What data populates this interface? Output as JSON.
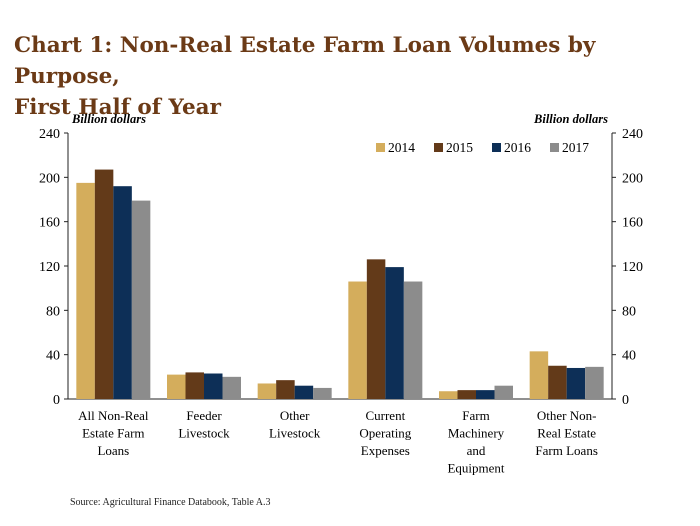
{
  "title": {
    "line1": "Chart 1: Non-Real Estate Farm Loan Volumes by Purpose,",
    "line2": "First Half of Year"
  },
  "source": "Source: Agricultural Finance Databook, Table A.3",
  "chart_data": {
    "type": "bar",
    "ylabel_left": "Billion dollars",
    "ylabel_right": "Billion dollars",
    "ylim": [
      0,
      240
    ],
    "yticks": [
      0,
      40,
      80,
      120,
      160,
      200,
      240
    ],
    "legend_position": "top-right",
    "grid": false,
    "categories": [
      [
        "All Non-Real",
        "Estate Farm",
        "Loans"
      ],
      [
        "Feeder",
        "Livestock"
      ],
      [
        "Other",
        "Livestock"
      ],
      [
        "Current",
        "Operating",
        "Expenses"
      ],
      [
        "Farm",
        "Machinery",
        "and",
        "Equipment"
      ],
      [
        "Other Non-",
        "Real Estate",
        "Farm Loans"
      ]
    ],
    "series": [
      {
        "name": "2014",
        "color": "#d4ad5c",
        "values": [
          195,
          22,
          14,
          106,
          7,
          43
        ]
      },
      {
        "name": "2015",
        "color": "#633a19",
        "values": [
          207,
          24,
          17,
          126,
          8,
          30
        ]
      },
      {
        "name": "2016",
        "color": "#0d2f57",
        "values": [
          192,
          23,
          12,
          119,
          8,
          28
        ]
      },
      {
        "name": "2017",
        "color": "#8c8c8c",
        "values": [
          179,
          20,
          10,
          106,
          12,
          29
        ]
      }
    ]
  }
}
